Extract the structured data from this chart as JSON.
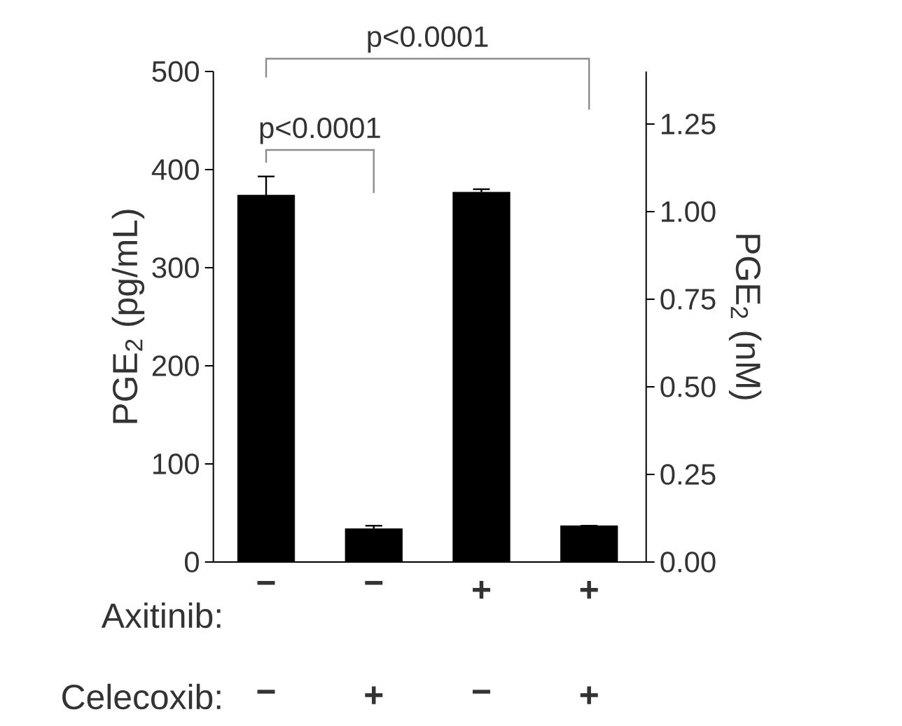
{
  "chart_data": {
    "type": "bar",
    "ylabel": "PGE$_{2}$ (pg/mL)",
    "y2label": "PGE$_{2}$ (nM)",
    "categories": [
      "−",
      "−",
      "+",
      "+"
    ],
    "values": [
      374,
      34,
      377,
      37
    ],
    "errors": [
      19,
      3,
      3,
      null
    ],
    "color": "#000000",
    "ylim": [
      0,
      500
    ],
    "yticks": [
      0,
      100,
      200,
      300,
      400,
      500
    ],
    "y2lim": [
      0,
      1.4
    ],
    "y2ticks": [
      {
        "value": 0,
        "label": "0.00"
      },
      {
        "value": 0.25,
        "label": "0.25"
      },
      {
        "value": 0.5,
        "label": "0.50"
      },
      {
        "value": 0.75,
        "label": "0.75"
      },
      {
        "value": 1.0,
        "label": "1.00"
      },
      {
        "value": 1.25,
        "label": "1.25"
      }
    ],
    "annotations": [
      "Axitinib:",
      "Celecoxib:",
      "−",
      "+",
      "−",
      "+",
      "p<0.0001",
      "p<0.0001"
    ]
  }
}
